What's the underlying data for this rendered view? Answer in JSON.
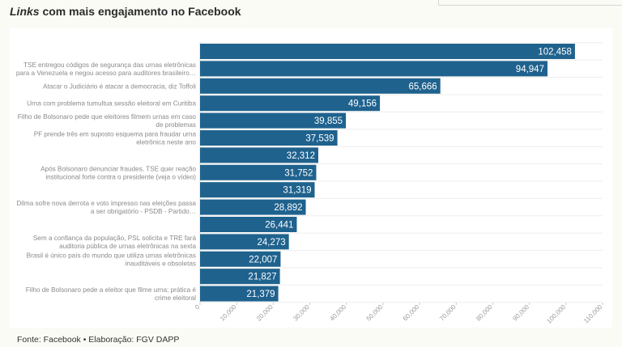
{
  "title": {
    "emphasis": "Links",
    "rest": " com mais engajamento no Facebook"
  },
  "footer": "Fonte: Facebook • Elaboração: FGV DAPP",
  "colors": {
    "bar": "#1f628e",
    "background": "#fbfbf6",
    "panel": "#ffffff"
  },
  "chart_data": {
    "type": "bar",
    "orientation": "horizontal",
    "title": "Links com mais engajamento no Facebook",
    "xlabel": "",
    "ylabel": "",
    "xlim": [
      0,
      110000
    ],
    "x_ticks": [
      0,
      10000,
      20000,
      30000,
      40000,
      50000,
      60000,
      70000,
      80000,
      90000,
      100000,
      110000
    ],
    "x_tick_labels": [
      "0",
      "10,000",
      "20,000",
      "30,000",
      "40,000",
      "50,000",
      "60,000",
      "70,000",
      "80,000",
      "90,000",
      "100,000",
      "110,000"
    ],
    "grid": true,
    "legend": "none",
    "bars": [
      {
        "label": [],
        "value": 102458,
        "value_label": "102,458"
      },
      {
        "label": [
          "TSE entregou códigos de segurança das urnas eletrônicas",
          "para a Venezuela e negou acesso para auditores brasileiro…"
        ],
        "value": 94947,
        "value_label": "94,947"
      },
      {
        "label": [
          "Atacar o Judiciário é atacar a democracia, diz Toffoli"
        ],
        "value": 65666,
        "value_label": "65,666"
      },
      {
        "label": [
          "Urna com problema tumultua sessão eleitoral em Curitiba"
        ],
        "value": 49156,
        "value_label": "49,156"
      },
      {
        "label": [
          "Filho de Bolsonaro pede que eleitores filmem urnas em caso",
          "de problemas"
        ],
        "value": 39855,
        "value_label": "39,855"
      },
      {
        "label": [
          "PF prende três em suposto esquema para fraudar urna",
          "eletrônica neste ano"
        ],
        "value": 37539,
        "value_label": "37,539"
      },
      {
        "label": [],
        "value": 32312,
        "value_label": "32,312"
      },
      {
        "label": [
          "Após Bolsonaro denunciar fraudes, TSE quer reação",
          "institucional forte contra o presidente (veja o vídeo)"
        ],
        "value": 31752,
        "value_label": "31,752"
      },
      {
        "label": [],
        "value": 31319,
        "value_label": "31,319"
      },
      {
        "label": [
          "Dilma sofre nova derrota e voto impresso nas eleições passa",
          "a ser obrigatório - PSDB - Partido…"
        ],
        "value": 28892,
        "value_label": "28,892"
      },
      {
        "label": [],
        "value": 26441,
        "value_label": "26,441"
      },
      {
        "label": [
          "Sem a confiança da população, PSL solicita e TRE fará",
          "auditoria pública de urnas eletrônicas na sexta"
        ],
        "value": 24273,
        "value_label": "24,273"
      },
      {
        "label": [
          "Brasil é único país do mundo que utiliza urnas eletrônicas",
          "inauditáveis e obsoletas"
        ],
        "value": 22007,
        "value_label": "22,007"
      },
      {
        "label": [],
        "value": 21827,
        "value_label": "21,827"
      },
      {
        "label": [
          "Filho de Bolsonaro pede a eleitor que filme urna; prática é",
          "crime eleitoral"
        ],
        "value": 21379,
        "value_label": "21,379"
      }
    ]
  }
}
